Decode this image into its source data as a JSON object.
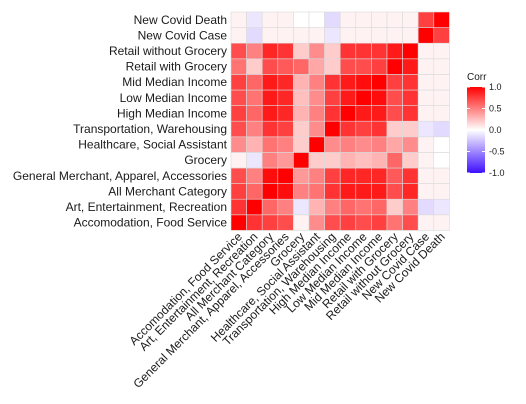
{
  "chart_data": {
    "type": "heatmap",
    "variables": [
      "Accomodation, Food Service",
      "Art, Entertainment, Recreation",
      "All Merchant Category",
      "General Merchant, Apparel, Accessories",
      "Grocery",
      "Healthcare, Social Assistant",
      "Transportation, Warehousing",
      "High Median Income",
      "Low Median Income",
      "Mid Median Income",
      "Retail with Grocery",
      "Retail without Grocery",
      "New Covid Case",
      "New Covid Death"
    ],
    "matrix": [
      [
        1.0,
        0.8,
        0.75,
        0.7,
        0.05,
        0.45,
        0.7,
        0.75,
        0.7,
        0.75,
        0.55,
        0.7,
        0.05,
        0.05
      ],
      [
        0.8,
        1.0,
        0.6,
        0.5,
        -0.1,
        0.3,
        0.5,
        0.6,
        0.55,
        0.6,
        0.2,
        0.5,
        -0.15,
        -0.1
      ],
      [
        0.75,
        0.6,
        1.0,
        0.95,
        0.5,
        0.55,
        0.8,
        0.9,
        0.9,
        0.9,
        0.7,
        0.85,
        0.05,
        0.05
      ],
      [
        0.7,
        0.5,
        0.95,
        1.0,
        0.4,
        0.5,
        0.75,
        0.85,
        0.85,
        0.85,
        0.65,
        0.8,
        0.05,
        0.05
      ],
      [
        0.05,
        -0.1,
        0.5,
        0.4,
        1.0,
        0.2,
        0.2,
        0.3,
        0.25,
        0.3,
        0.6,
        0.2,
        0.05,
        0.0
      ],
      [
        0.45,
        0.3,
        0.55,
        0.5,
        0.2,
        1.0,
        0.45,
        0.5,
        0.45,
        0.5,
        0.35,
        0.45,
        0.05,
        0.0
      ],
      [
        0.7,
        0.5,
        0.8,
        0.75,
        0.2,
        0.45,
        1.0,
        0.8,
        0.75,
        0.8,
        0.2,
        0.2,
        -0.1,
        -0.15
      ],
      [
        0.75,
        0.6,
        0.9,
        0.85,
        0.3,
        0.5,
        0.8,
        1.0,
        0.9,
        0.9,
        0.7,
        0.8,
        0.05,
        0.05
      ],
      [
        0.7,
        0.55,
        0.9,
        0.85,
        0.25,
        0.45,
        0.75,
        0.9,
        1.0,
        0.95,
        0.7,
        0.8,
        0.05,
        0.05
      ],
      [
        0.75,
        0.6,
        0.9,
        0.85,
        0.3,
        0.5,
        0.8,
        0.9,
        0.95,
        1.0,
        0.75,
        0.8,
        0.05,
        0.05
      ],
      [
        0.55,
        0.2,
        0.7,
        0.65,
        0.6,
        0.35,
        0.2,
        0.7,
        0.7,
        0.75,
        1.0,
        0.9,
        0.05,
        0.05
      ],
      [
        0.7,
        0.5,
        0.85,
        0.8,
        0.2,
        0.45,
        0.2,
        0.8,
        0.8,
        0.8,
        0.9,
        1.0,
        0.05,
        0.05
      ],
      [
        0.05,
        -0.15,
        0.05,
        0.05,
        0.05,
        0.05,
        -0.1,
        0.05,
        0.05,
        0.05,
        0.05,
        0.05,
        1.0,
        0.75
      ],
      [
        0.05,
        -0.1,
        0.05,
        0.05,
        0.0,
        0.0,
        -0.15,
        0.05,
        0.05,
        0.05,
        0.05,
        0.05,
        0.75,
        1.0
      ]
    ],
    "legend": {
      "title": "Corr",
      "ticks": [
        "1.0",
        "0.5",
        "0.0",
        "-0.5",
        "-1.0"
      ],
      "tick_values": [
        1.0,
        0.5,
        0.0,
        -0.5,
        -1.0
      ],
      "placement": "right"
    },
    "color_scale": {
      "low": "#3e0fff",
      "mid": "#ffffff",
      "high": "#ff0000",
      "range": [
        -1,
        1
      ]
    }
  }
}
